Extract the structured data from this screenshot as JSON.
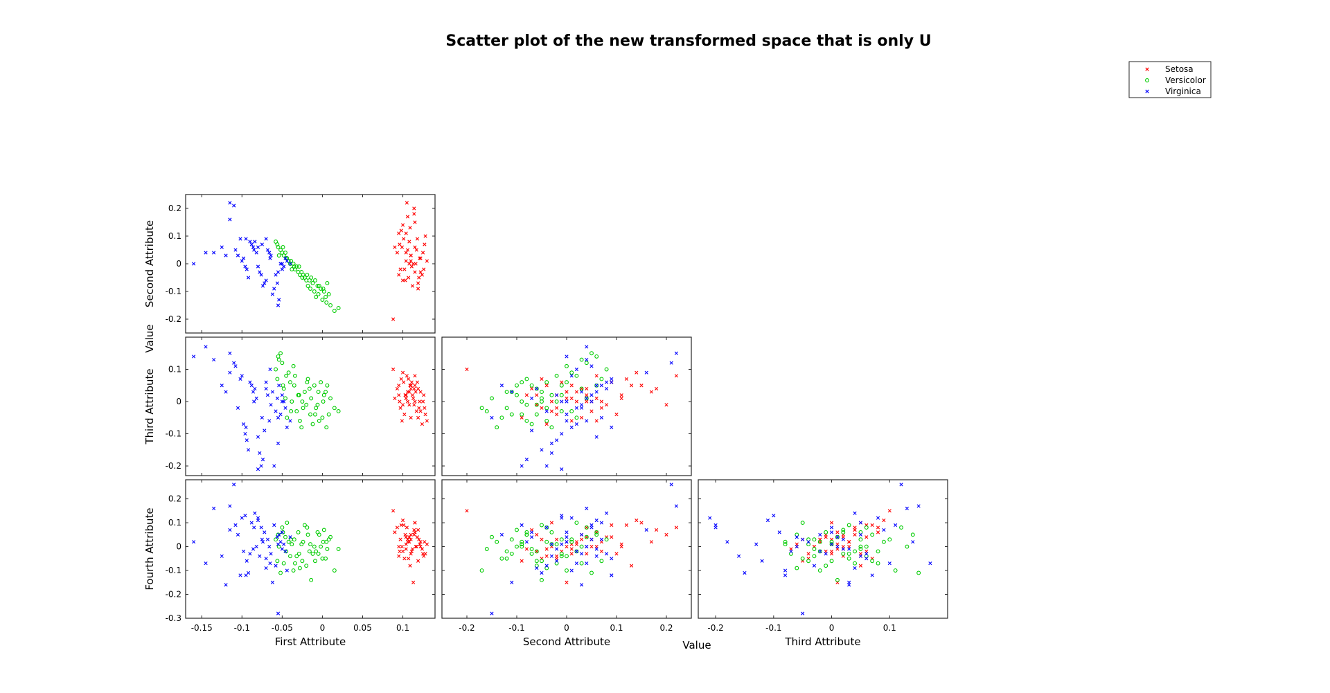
{
  "chart_data": {
    "type": "scatter",
    "title": "Scatter plot of the new transformed space that is only U",
    "shared_labels": {
      "x": "Value",
      "y": "Value"
    },
    "legend": {
      "placement": "top-right",
      "entries": [
        {
          "name": "Setosa",
          "color": "#ff0000",
          "marker": "x"
        },
        {
          "name": "Versicolor",
          "color": "#00cc00",
          "marker": "o"
        },
        {
          "name": "Virginica",
          "color": "#0000ff",
          "marker": "x"
        }
      ]
    },
    "variables": [
      {
        "name": "First Attribute",
        "range": [
          -0.17,
          0.14
        ],
        "ticks": [
          -0.15,
          -0.1,
          -0.05,
          0,
          0.05,
          0.1
        ],
        "tick_labels": [
          "-0.15",
          "-0.1",
          "-0.05",
          "0",
          "0.05",
          "0.1"
        ]
      },
      {
        "name": "Second Attribute",
        "range": [
          -0.25,
          0.25
        ],
        "ticks": [
          -0.2,
          -0.1,
          0,
          0.1,
          0.2
        ],
        "tick_labels": [
          "-0.2",
          "-0.1",
          "0",
          "0.1",
          "0.2"
        ]
      },
      {
        "name": "Third Attribute",
        "range": [
          -0.23,
          0.2
        ],
        "ticks": [
          -0.2,
          -0.1,
          0,
          0.1
        ],
        "tick_labels": [
          "-0.2",
          "-0.1",
          "0",
          "0.1"
        ]
      },
      {
        "name": "Fourth Attribute",
        "range": [
          -0.3,
          0.28
        ],
        "ticks": [
          -0.3,
          -0.2,
          -0.1,
          0,
          0.1,
          0.2
        ],
        "tick_labels": [
          "-0.3",
          "-0.2",
          "-0.1",
          "0",
          "0.1",
          "0.2"
        ]
      }
    ],
    "panels": [
      {
        "x_var": 0,
        "y_var": 1
      },
      {
        "x_var": 0,
        "y_var": 2
      },
      {
        "x_var": 1,
        "y_var": 2
      },
      {
        "x_var": 0,
        "y_var": 3
      },
      {
        "x_var": 1,
        "y_var": 3
      },
      {
        "x_var": 2,
        "y_var": 3
      }
    ],
    "series": [
      {
        "name": "Setosa",
        "points": [
          [
            0.11,
            0.03,
            0.04,
            0.05
          ],
          [
            0.095,
            0.11,
            0.02,
            0.0
          ],
          [
            0.12,
            -0.05,
            -0.02,
            0.03
          ],
          [
            0.105,
            0.22,
            0.08,
            0.08
          ],
          [
            0.115,
            0.15,
            0.05,
            0.1
          ],
          [
            0.1,
            -0.06,
            -0.01,
            -0.02
          ],
          [
            0.125,
            0.04,
            0.0,
            -0.03
          ],
          [
            0.108,
            0.0,
            0.03,
            0.02
          ],
          [
            0.118,
            0.09,
            0.06,
            0.04
          ],
          [
            0.102,
            -0.02,
            -0.04,
            -0.05
          ],
          [
            0.09,
            0.06,
            0.01,
            0.06
          ],
          [
            0.13,
            0.01,
            -0.06,
            0.01
          ],
          [
            0.112,
            -0.08,
            0.02,
            -0.01
          ],
          [
            0.098,
            0.12,
            0.07,
            0.09
          ],
          [
            0.122,
            -0.03,
            -0.03,
            0.0
          ],
          [
            0.106,
            0.05,
            0.0,
            0.03
          ],
          [
            0.114,
            0.18,
            0.04,
            0.07
          ],
          [
            0.095,
            -0.04,
            0.05,
            -0.04
          ],
          [
            0.127,
            0.07,
            -0.02,
            0.02
          ],
          [
            0.104,
            0.01,
            0.01,
            -0.01
          ],
          [
            0.119,
            -0.09,
            -0.05,
            -0.06
          ],
          [
            0.1,
            0.14,
            0.09,
            0.11
          ],
          [
            0.116,
            0.0,
            0.03,
            0.0
          ],
          [
            0.108,
            0.08,
            -0.01,
            0.04
          ],
          [
            0.111,
            -0.01,
            0.06,
            -0.02
          ],
          [
            0.093,
            0.04,
            0.04,
            0.08
          ],
          [
            0.128,
            0.1,
            -0.04,
            -0.03
          ],
          [
            0.103,
            -0.06,
            0.02,
            0.05
          ],
          [
            0.121,
            0.02,
            0.0,
            0.01
          ],
          [
            0.109,
            0.13,
            0.05,
            -0.08
          ],
          [
            0.097,
            -0.02,
            -0.02,
            0.03
          ],
          [
            0.115,
            0.06,
            0.08,
            0.06
          ],
          [
            0.124,
            -0.04,
            -0.07,
            -0.01
          ],
          [
            0.106,
            0.17,
            0.03,
            0.02
          ],
          [
            0.113,
            0.0,
            0.01,
            -0.15
          ],
          [
            0.088,
            -0.2,
            0.1,
            0.15
          ],
          [
            0.117,
            0.05,
            -0.03,
            0.0
          ],
          [
            0.101,
            0.09,
            0.06,
            0.09
          ],
          [
            0.126,
            -0.02,
            0.02,
            -0.04
          ],
          [
            0.11,
            0.03,
            -0.05,
            0.03
          ],
          [
            0.096,
            0.07,
            0.0,
            -0.02
          ],
          [
            0.119,
            -0.07,
            0.04,
            0.07
          ],
          [
            0.104,
            0.11,
            0.01,
            0.01
          ],
          [
            0.114,
            0.2,
            -0.01,
            0.05
          ],
          [
            0.107,
            -0.05,
            0.07,
            -0.05
          ],
          [
            0.122,
            0.02,
            0.03,
            0.02
          ],
          [
            0.099,
            0.06,
            -0.06,
            0.0
          ],
          [
            0.115,
            -0.03,
            0.0,
            0.1
          ],
          [
            0.11,
            0.01,
            0.05,
            -0.03
          ],
          [
            0.104,
            0.04,
            0.02,
            0.04
          ]
        ]
      },
      {
        "name": "Versicolor",
        "points": [
          [
            -0.055,
            0.06,
            0.14,
            0.05
          ],
          [
            -0.045,
            0.02,
            0.08,
            -0.02
          ],
          [
            -0.035,
            -0.01,
            0.05,
            0.03
          ],
          [
            -0.025,
            -0.05,
            0.0,
            -0.06
          ],
          [
            -0.015,
            -0.09,
            -0.04,
            0.01
          ],
          [
            -0.005,
            -0.11,
            0.03,
            -0.03
          ],
          [
            0.005,
            -0.14,
            -0.08,
            0.02
          ],
          [
            0.015,
            -0.17,
            -0.02,
            -0.1
          ],
          [
            -0.05,
            0.04,
            0.12,
            0.08
          ],
          [
            -0.04,
            0.0,
            0.06,
            -0.04
          ],
          [
            -0.03,
            -0.03,
            0.02,
            0.06
          ],
          [
            -0.02,
            -0.06,
            -0.01,
            -0.08
          ],
          [
            -0.01,
            -0.1,
            0.05,
            0.0
          ],
          [
            0.0,
            -0.13,
            -0.05,
            -0.05
          ],
          [
            0.01,
            -0.15,
            0.01,
            0.04
          ],
          [
            0.02,
            -0.16,
            -0.03,
            -0.01
          ],
          [
            -0.058,
            0.08,
            0.1,
            0.03
          ],
          [
            -0.048,
            0.03,
            0.04,
            -0.07
          ],
          [
            -0.038,
            -0.02,
            0.0,
            0.01
          ],
          [
            -0.028,
            -0.04,
            -0.06,
            -0.09
          ],
          [
            -0.018,
            -0.08,
            0.07,
            0.05
          ],
          [
            -0.008,
            -0.12,
            -0.02,
            -0.02
          ],
          [
            0.002,
            -0.1,
            0.02,
            0.07
          ],
          [
            -0.052,
            0.05,
            0.15,
            -0.11
          ],
          [
            -0.042,
            0.01,
            0.09,
            0.02
          ],
          [
            -0.032,
            -0.01,
            -0.03,
            -0.04
          ],
          [
            -0.022,
            -0.05,
            0.03,
            0.09
          ],
          [
            -0.012,
            -0.07,
            -0.07,
            -0.03
          ],
          [
            -0.002,
            -0.09,
            0.06,
            0.0
          ],
          [
            0.008,
            -0.11,
            -0.04,
            0.03
          ],
          [
            -0.056,
            0.07,
            0.07,
            -0.06
          ],
          [
            -0.046,
            0.04,
            0.01,
            0.04
          ],
          [
            -0.036,
            0.0,
            0.11,
            -0.1
          ],
          [
            -0.026,
            -0.03,
            -0.08,
            0.01
          ],
          [
            -0.016,
            -0.06,
            0.04,
            -0.02
          ],
          [
            -0.006,
            -0.08,
            -0.01,
            0.06
          ],
          [
            0.004,
            -0.12,
            0.03,
            -0.05
          ],
          [
            -0.044,
            0.02,
            -0.05,
            0.1
          ],
          [
            -0.034,
            -0.02,
            0.08,
            -0.07
          ],
          [
            -0.024,
            -0.04,
            -0.02,
            0.02
          ],
          [
            -0.014,
            -0.05,
            0.01,
            -0.14
          ],
          [
            -0.004,
            -0.08,
            -0.06,
            0.05
          ],
          [
            0.006,
            -0.07,
            0.05,
            -0.01
          ],
          [
            -0.054,
            0.03,
            0.13,
            0.0
          ],
          [
            -0.039,
            0.01,
            -0.03,
            0.03
          ],
          [
            -0.029,
            -0.01,
            0.02,
            -0.03
          ],
          [
            -0.019,
            -0.04,
            0.06,
            0.08
          ],
          [
            -0.009,
            -0.06,
            -0.04,
            -0.06
          ],
          [
            0.001,
            -0.09,
            0.0,
            0.02
          ],
          [
            -0.049,
            0.06,
            0.05,
            0.06
          ]
        ]
      },
      {
        "name": "Virginica",
        "points": [
          [
            -0.115,
            0.22,
            0.15,
            0.17
          ],
          [
            -0.11,
            0.21,
            0.12,
            0.26
          ],
          [
            -0.125,
            0.06,
            0.05,
            -0.04
          ],
          [
            -0.135,
            0.04,
            0.13,
            0.16
          ],
          [
            -0.095,
            0.09,
            -0.08,
            -0.12
          ],
          [
            -0.085,
            0.05,
            0.0,
            0.08
          ],
          [
            -0.075,
            0.07,
            -0.05,
            0.03
          ],
          [
            -0.065,
            0.02,
            0.1,
            -0.07
          ],
          [
            -0.055,
            -0.03,
            -0.13,
            0.01
          ],
          [
            -0.16,
            0.0,
            0.14,
            0.02
          ],
          [
            -0.145,
            0.04,
            0.17,
            -0.07
          ],
          [
            -0.105,
            0.03,
            -0.02,
            0.05
          ],
          [
            -0.09,
            0.08,
            0.06,
            -0.03
          ],
          [
            -0.08,
            0.06,
            -0.11,
            0.11
          ],
          [
            -0.07,
            -0.06,
            0.04,
            -0.09
          ],
          [
            -0.06,
            -0.09,
            -0.2,
            0.09
          ],
          [
            -0.05,
            -0.02,
            0.02,
            -0.01
          ],
          [
            -0.04,
            0.0,
            -0.06,
            0.04
          ],
          [
            -0.1,
            0.01,
            0.08,
            0.12
          ],
          [
            -0.092,
            -0.05,
            -0.15,
            -0.11
          ],
          [
            -0.082,
            0.04,
            0.01,
            0.0
          ],
          [
            -0.072,
            -0.07,
            -0.09,
            0.06
          ],
          [
            -0.062,
            -0.11,
            0.03,
            -0.15
          ],
          [
            -0.052,
            0.0,
            -0.04,
            0.02
          ],
          [
            -0.115,
            0.16,
            0.09,
            0.07
          ],
          [
            -0.098,
            0.02,
            -0.07,
            -0.02
          ],
          [
            -0.088,
            0.07,
            0.05,
            0.1
          ],
          [
            -0.078,
            -0.03,
            -0.16,
            -0.04
          ],
          [
            -0.068,
            0.05,
            0.02,
            0.03
          ],
          [
            -0.058,
            -0.04,
            -0.03,
            -0.08
          ],
          [
            -0.048,
            -0.01,
            0.0,
            0.01
          ],
          [
            -0.108,
            0.05,
            0.11,
            0.09
          ],
          [
            -0.094,
            -0.02,
            -0.12,
            -0.06
          ],
          [
            -0.084,
            0.08,
            0.04,
            0.14
          ],
          [
            -0.074,
            -0.08,
            -0.18,
            0.02
          ],
          [
            -0.064,
            0.03,
            -0.01,
            -0.03
          ],
          [
            -0.054,
            -0.13,
            0.05,
            0.05
          ],
          [
            -0.044,
            0.01,
            -0.08,
            -0.1
          ],
          [
            -0.102,
            0.09,
            0.07,
            -0.12
          ],
          [
            -0.096,
            -0.01,
            -0.1,
            0.13
          ],
          [
            -0.086,
            0.06,
            0.03,
            -0.01
          ],
          [
            -0.076,
            -0.04,
            -0.2,
            0.08
          ],
          [
            -0.066,
            0.04,
            -0.06,
            0.0
          ],
          [
            -0.056,
            -0.07,
            0.01,
            0.04
          ],
          [
            -0.046,
            0.02,
            -0.02,
            -0.02
          ],
          [
            -0.12,
            0.03,
            0.03,
            -0.16
          ],
          [
            -0.08,
            -0.01,
            -0.21,
            0.12
          ],
          [
            -0.07,
            0.09,
            0.06,
            -0.05
          ],
          [
            -0.055,
            -0.15,
            -0.05,
            -0.28
          ],
          [
            -0.05,
            0.0,
            0.0,
            0.06
          ]
        ]
      }
    ],
    "grid": false
  }
}
